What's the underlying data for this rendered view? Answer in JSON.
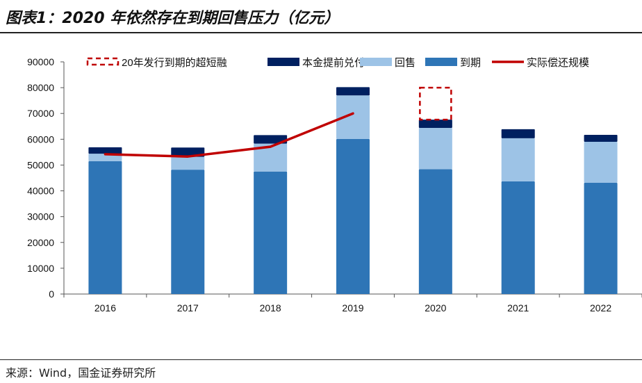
{
  "title": "图表1：2020 年依然存在到期回售压力（亿元）",
  "source": "来源：Wind，国金证券研究所",
  "chart_data": {
    "type": "bar",
    "stacked": true,
    "categories": [
      "2016",
      "2017",
      "2018",
      "2019",
      "2020",
      "2021",
      "2022"
    ],
    "ylim": [
      0,
      90000
    ],
    "yticks": [
      0,
      10000,
      20000,
      30000,
      40000,
      50000,
      60000,
      70000,
      80000,
      90000
    ],
    "grid": false,
    "legend_position": "top",
    "series": [
      {
        "name": "到期",
        "type": "bar",
        "color": "#2E75B6",
        "values": [
          51500,
          48200,
          47500,
          60100,
          48400,
          43700,
          43100
        ]
      },
      {
        "name": "回售",
        "type": "bar",
        "color": "#9DC3E6",
        "values": [
          2900,
          5000,
          10800,
          16900,
          16000,
          16700,
          15900
        ]
      },
      {
        "name": "本金提前兑付",
        "type": "bar",
        "color": "#002060",
        "values": [
          2500,
          3600,
          3300,
          3200,
          3200,
          3500,
          2700
        ]
      },
      {
        "name": "20年发行到期的超短融",
        "type": "bar-dashed",
        "color": "#C00000",
        "values": [
          null,
          null,
          null,
          null,
          12400,
          null,
          null
        ]
      },
      {
        "name": "实际偿还规模",
        "type": "line",
        "color": "#C00000",
        "values": [
          54200,
          53300,
          57100,
          70000,
          null,
          null,
          null
        ]
      }
    ]
  }
}
